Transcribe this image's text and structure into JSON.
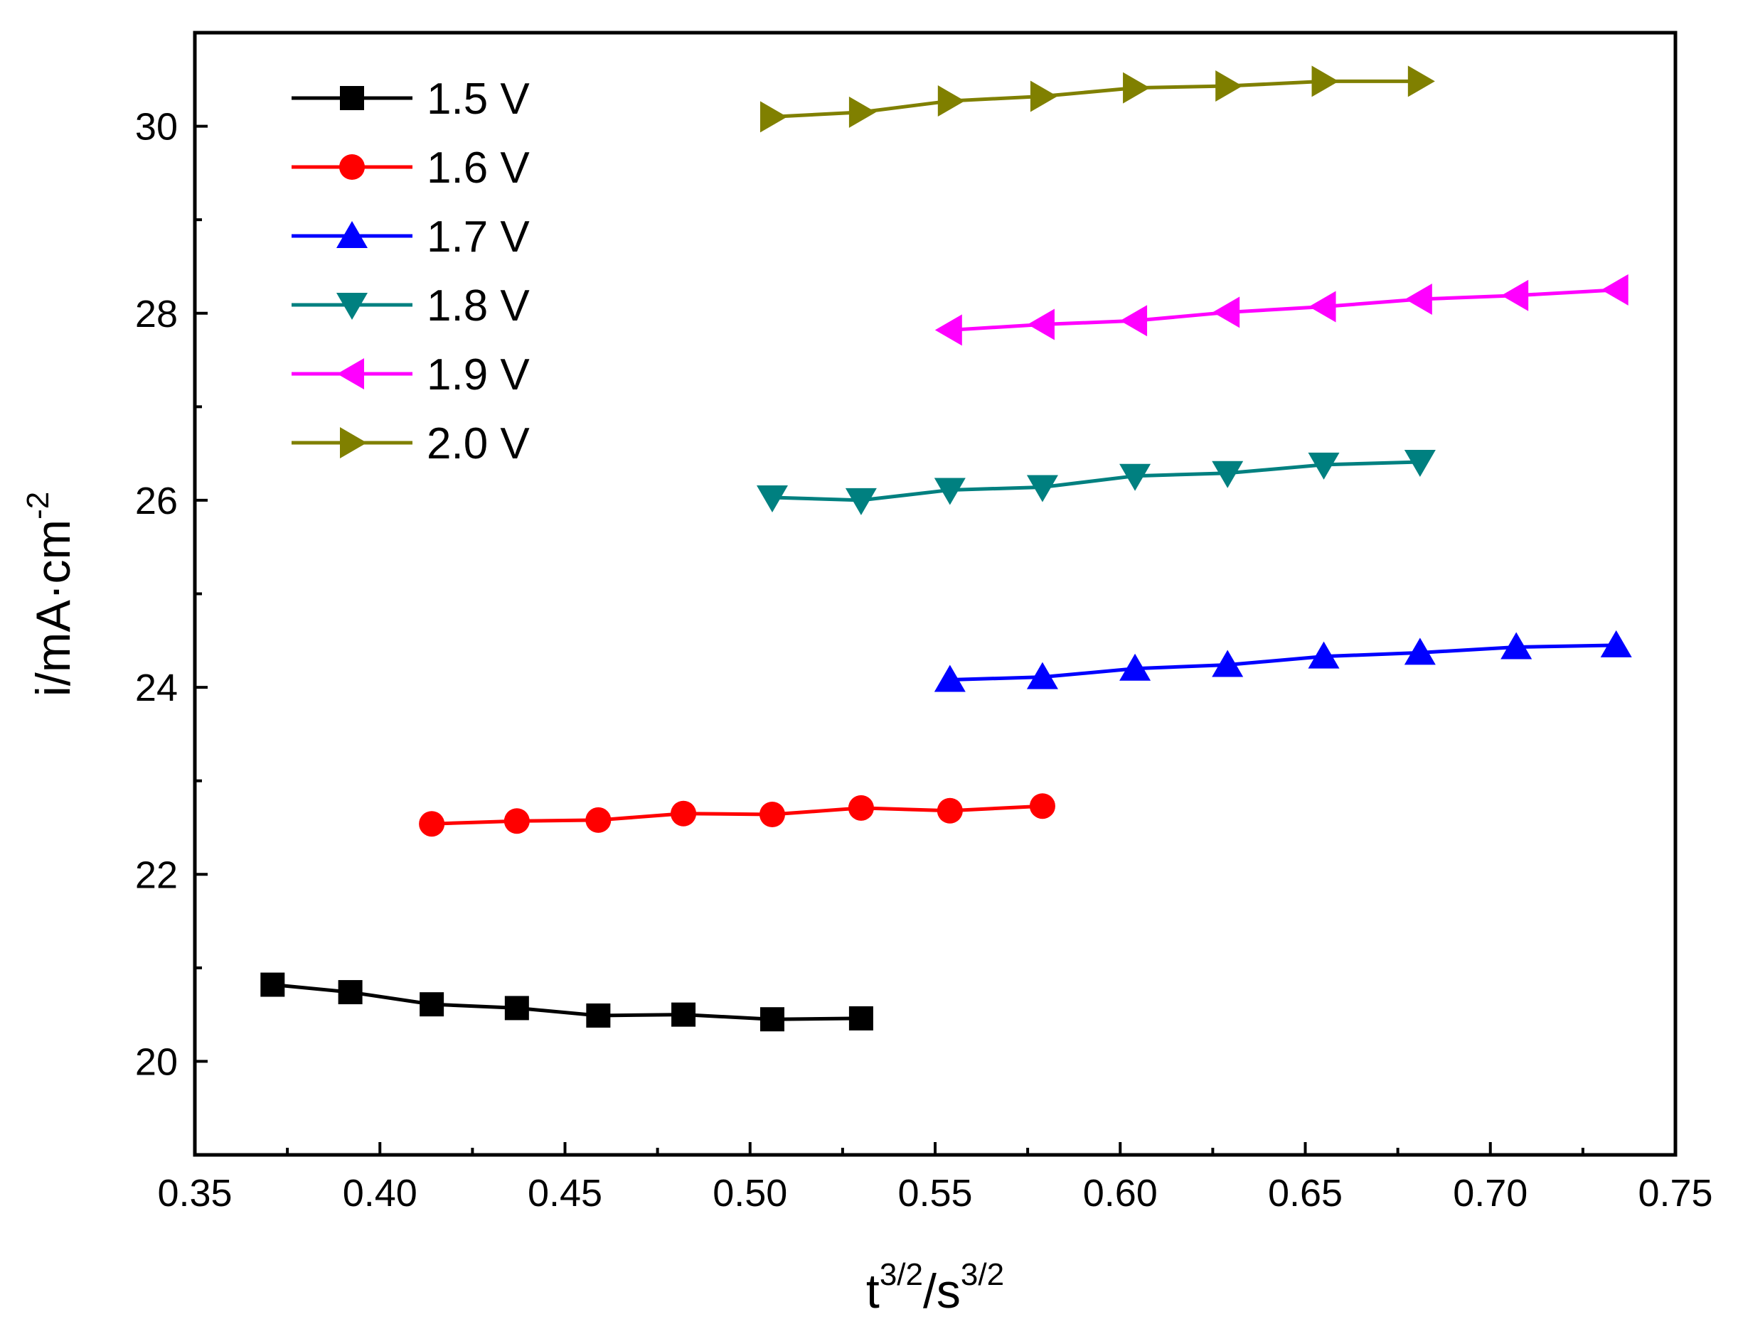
{
  "chart_data": {
    "type": "line",
    "title": "",
    "xlabel": {
      "base": "t",
      "sup1": "3/2",
      "mid": "/s",
      "sup2": "3/2"
    },
    "ylabel": {
      "base": "i/mA·cm",
      "sup": "-2"
    },
    "xlim": [
      0.35,
      0.75
    ],
    "ylim": [
      19,
      31
    ],
    "xticks": [
      0.35,
      0.4,
      0.45,
      0.5,
      0.55,
      0.6,
      0.65,
      0.7,
      0.75
    ],
    "xtick_labels": [
      "0.35",
      "0.40",
      "0.45",
      "0.50",
      "0.55",
      "0.60",
      "0.65",
      "0.70",
      "0.75"
    ],
    "yticks": [
      20,
      22,
      24,
      26,
      28,
      30
    ],
    "ytick_labels": [
      "20",
      "22",
      "24",
      "26",
      "28",
      "30"
    ],
    "grid": false,
    "legend_position": "top-left",
    "series": [
      {
        "name": "1.5 V",
        "color": "#000000",
        "marker": "square",
        "x": [
          0.371,
          0.392,
          0.414,
          0.437,
          0.459,
          0.482,
          0.506,
          0.53
        ],
        "y": [
          20.82,
          20.74,
          20.61,
          20.57,
          20.49,
          20.5,
          20.45,
          20.46
        ]
      },
      {
        "name": "1.6 V",
        "color": "#ff0000",
        "marker": "circle",
        "x": [
          0.414,
          0.437,
          0.459,
          0.482,
          0.506,
          0.53,
          0.554,
          0.579
        ],
        "y": [
          22.54,
          22.57,
          22.58,
          22.65,
          22.64,
          22.71,
          22.68,
          22.73
        ]
      },
      {
        "name": "1.7 V",
        "color": "#0000ff",
        "marker": "triangle-up",
        "x": [
          0.554,
          0.579,
          0.604,
          0.629,
          0.655,
          0.681,
          0.707,
          0.734
        ],
        "y": [
          24.08,
          24.11,
          24.2,
          24.24,
          24.33,
          24.37,
          24.43,
          24.45
        ]
      },
      {
        "name": "1.8 V",
        "color": "#008080",
        "marker": "triangle-down",
        "x": [
          0.506,
          0.53,
          0.554,
          0.579,
          0.604,
          0.629,
          0.655,
          0.681
        ],
        "y": [
          26.03,
          26.0,
          26.11,
          26.14,
          26.26,
          26.29,
          26.38,
          26.41
        ]
      },
      {
        "name": "1.9 V",
        "color": "#ff00ff",
        "marker": "triangle-left",
        "x": [
          0.554,
          0.579,
          0.604,
          0.629,
          0.655,
          0.681,
          0.707,
          0.734
        ],
        "y": [
          27.82,
          27.88,
          27.92,
          28.01,
          28.07,
          28.15,
          28.19,
          28.25
        ]
      },
      {
        "name": "2.0 V",
        "color": "#808000",
        "marker": "triangle-right",
        "x": [
          0.506,
          0.53,
          0.554,
          0.579,
          0.604,
          0.629,
          0.655,
          0.681
        ],
        "y": [
          30.1,
          30.15,
          30.27,
          30.32,
          30.41,
          30.43,
          30.48,
          30.48
        ]
      }
    ]
  }
}
